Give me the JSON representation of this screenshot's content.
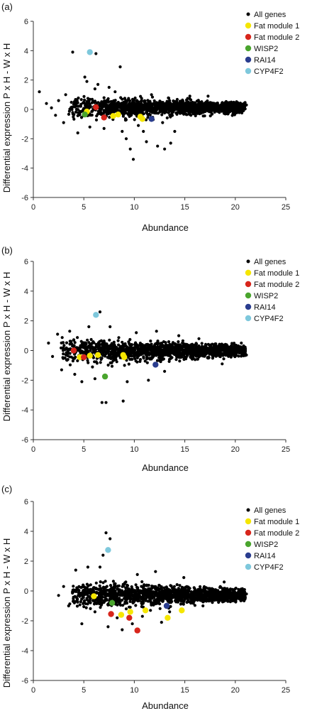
{
  "figure": {
    "ylabel": "Differential expression P x H - W x H"
  },
  "chart_data": [
    {
      "type": "scatter",
      "panel_label": "(a)",
      "xlabel": "Abundance",
      "ylabel": "",
      "xlim": [
        0,
        25
      ],
      "ylim": [
        -6,
        6
      ],
      "x_ticks": [
        "0",
        "5",
        "10",
        "15",
        "20",
        "25"
      ],
      "y_ticks": [
        "6",
        "4",
        "2",
        "0",
        "-2",
        "-4",
        "-6"
      ],
      "legend_position": "top-right",
      "bulk_cloud": {
        "x_start": 3.5,
        "x_end": 21.0,
        "y_center": 0.15,
        "upper_half_width": 0.75,
        "lower_half_width": 0.9
      },
      "series": [
        {
          "name": "All genes",
          "color": "#000000",
          "points": [
            [
              0.6,
              1.2
            ],
            [
              1.3,
              0.4
            ],
            [
              1.8,
              0.1
            ],
            [
              2.2,
              -0.4
            ],
            [
              2.5,
              0.6
            ],
            [
              3.0,
              -0.9
            ],
            [
              3.2,
              1.0
            ],
            [
              3.9,
              3.9
            ],
            [
              4.4,
              -1.6
            ],
            [
              5.1,
              2.2
            ],
            [
              5.3,
              1.9
            ],
            [
              5.6,
              -1.2
            ],
            [
              6.2,
              3.8
            ],
            [
              6.1,
              1.4
            ],
            [
              6.4,
              1.7
            ],
            [
              7.0,
              -1.3
            ],
            [
              7.5,
              1.5
            ],
            [
              8.1,
              1.2
            ],
            [
              8.6,
              2.9
            ],
            [
              8.8,
              -1.5
            ],
            [
              9.2,
              -2.0
            ],
            [
              9.6,
              -2.7
            ],
            [
              9.9,
              -3.4
            ],
            [
              10.4,
              -1.1
            ],
            [
              10.9,
              -1.5
            ],
            [
              11.2,
              -2.2
            ],
            [
              11.7,
              1.0
            ],
            [
              12.3,
              -2.5
            ],
            [
              12.8,
              -0.9
            ],
            [
              13.0,
              -2.7
            ],
            [
              13.6,
              -2.3
            ],
            [
              14.0,
              -1.5
            ],
            [
              15.5,
              0.9
            ],
            [
              17.3,
              0.9
            ],
            [
              19.6,
              0.5
            ],
            [
              21.1,
              0.3
            ]
          ]
        },
        {
          "name": "Fat module 1",
          "color": "#f5e600",
          "points": [
            [
              5.3,
              -0.15
            ],
            [
              7.9,
              -0.45
            ],
            [
              8.4,
              -0.35
            ],
            [
              10.6,
              -0.5
            ],
            [
              10.8,
              -0.65
            ]
          ]
        },
        {
          "name": "Fat module 2",
          "color": "#d8261c",
          "points": [
            [
              6.2,
              0.15
            ],
            [
              7.0,
              -0.55
            ]
          ]
        },
        {
          "name": "WISP2",
          "color": "#4aa52e",
          "points": [
            [
              5.1,
              -0.35
            ]
          ]
        },
        {
          "name": "RAI14",
          "color": "#2a3d8f",
          "points": [
            [
              11.7,
              -0.65
            ]
          ]
        },
        {
          "name": "CYP4F2",
          "color": "#7ec8dc",
          "points": [
            [
              5.6,
              3.9
            ]
          ]
        }
      ]
    },
    {
      "type": "scatter",
      "panel_label": "(b)",
      "xlabel": "Abundance",
      "ylabel": "",
      "xlim": [
        0,
        25
      ],
      "ylim": [
        -6,
        6
      ],
      "x_ticks": [
        "0",
        "5",
        "10",
        "15",
        "20",
        "25"
      ],
      "y_ticks": [
        "6",
        "4",
        "2",
        "0",
        "-2",
        "-4",
        "-6"
      ],
      "legend_position": "top-right",
      "bulk_cloud": {
        "x_start": 2.5,
        "x_end": 21.0,
        "y_center": 0.0,
        "upper_half_width": 0.85,
        "lower_half_width": 0.95
      },
      "series": [
        {
          "name": "All genes",
          "color": "#000000",
          "points": [
            [
              1.5,
              0.5
            ],
            [
              1.9,
              -0.4
            ],
            [
              2.4,
              1.1
            ],
            [
              2.8,
              -1.3
            ],
            [
              3.6,
              1.3
            ],
            [
              4.1,
              -1.6
            ],
            [
              4.8,
              -2.1
            ],
            [
              5.5,
              1.6
            ],
            [
              6.1,
              -1.9
            ],
            [
              6.6,
              2.6
            ],
            [
              6.8,
              -3.5
            ],
            [
              7.2,
              -3.5
            ],
            [
              7.6,
              1.6
            ],
            [
              8.9,
              -3.4
            ],
            [
              9.3,
              -2.1
            ],
            [
              10.2,
              1.2
            ],
            [
              11.4,
              -2.0
            ],
            [
              12.2,
              1.3
            ],
            [
              13.0,
              -1.4
            ],
            [
              14.4,
              1.0
            ],
            [
              16.4,
              0.8
            ],
            [
              18.7,
              -0.9
            ],
            [
              20.6,
              0.5
            ],
            [
              21.1,
              -0.3
            ]
          ]
        },
        {
          "name": "Fat module 1",
          "color": "#f5e600",
          "points": [
            [
              4.6,
              -0.45
            ],
            [
              5.6,
              -0.35
            ],
            [
              6.4,
              -0.3
            ],
            [
              8.9,
              -0.3
            ],
            [
              9.0,
              -0.45
            ]
          ]
        },
        {
          "name": "Fat module 2",
          "color": "#d8261c",
          "points": [
            [
              4.0,
              0.0
            ],
            [
              5.0,
              -0.45
            ]
          ]
        },
        {
          "name": "WISP2",
          "color": "#4aa52e",
          "points": [
            [
              7.1,
              -1.75
            ]
          ]
        },
        {
          "name": "RAI14",
          "color": "#2a3d8f",
          "points": [
            [
              12.1,
              -0.95
            ]
          ]
        },
        {
          "name": "CYP4F2",
          "color": "#7ec8dc",
          "points": [
            [
              6.2,
              2.4
            ]
          ]
        }
      ]
    },
    {
      "type": "scatter",
      "panel_label": "(c)",
      "xlabel": "Abundance",
      "ylabel": "",
      "xlim": [
        0,
        25
      ],
      "ylim": [
        -6,
        6
      ],
      "x_ticks": [
        "0",
        "5",
        "10",
        "15",
        "20",
        "25"
      ],
      "y_ticks": [
        "6",
        "4",
        "2",
        "0",
        "-2",
        "-4",
        "-6"
      ],
      "legend_position": "top-right",
      "bulk_cloud": {
        "x_start": 3.6,
        "x_end": 21.0,
        "y_center": -0.25,
        "upper_half_width": 0.85,
        "lower_half_width": 1.0
      },
      "series": [
        {
          "name": "All genes",
          "color": "#000000",
          "points": [
            [
              2.5,
              -0.3
            ],
            [
              3.0,
              0.3
            ],
            [
              3.5,
              -1.0
            ],
            [
              4.2,
              1.4
            ],
            [
              4.8,
              -2.2
            ],
            [
              5.4,
              1.6
            ],
            [
              6.1,
              -1.4
            ],
            [
              6.6,
              1.6
            ],
            [
              6.9,
              2.4
            ],
            [
              7.2,
              3.9
            ],
            [
              7.4,
              -2.4
            ],
            [
              7.6,
              3.5
            ],
            [
              8.3,
              -1.8
            ],
            [
              8.8,
              -2.6
            ],
            [
              9.2,
              -1.2
            ],
            [
              9.8,
              -2.2
            ],
            [
              10.3,
              1.1
            ],
            [
              10.8,
              -1.7
            ],
            [
              11.6,
              -1.3
            ],
            [
              12.1,
              1.3
            ],
            [
              12.7,
              -2.1
            ],
            [
              13.5,
              -1.4
            ],
            [
              14.9,
              0.9
            ],
            [
              16.8,
              -1.0
            ],
            [
              18.9,
              0.6
            ],
            [
              21.1,
              -0.2
            ]
          ]
        },
        {
          "name": "Fat module 1",
          "color": "#f5e600",
          "points": [
            [
              6.0,
              -0.35
            ],
            [
              8.7,
              -1.6
            ],
            [
              9.6,
              -1.4
            ],
            [
              11.1,
              -1.3
            ],
            [
              13.3,
              -1.8
            ],
            [
              14.7,
              -1.3
            ]
          ]
        },
        {
          "name": "Fat module 2",
          "color": "#d8261c",
          "points": [
            [
              7.7,
              -1.55
            ],
            [
              9.5,
              -1.8
            ],
            [
              10.3,
              -2.65
            ]
          ]
        },
        {
          "name": "WISP2",
          "color": "#4aa52e",
          "points": [
            [
              7.8,
              -0.8
            ]
          ]
        },
        {
          "name": "RAI14",
          "color": "#2a3d8f",
          "points": [
            [
              13.2,
              -1.0
            ]
          ]
        },
        {
          "name": "CYP4F2",
          "color": "#7ec8dc",
          "points": [
            [
              7.4,
              2.75
            ]
          ]
        }
      ]
    }
  ]
}
